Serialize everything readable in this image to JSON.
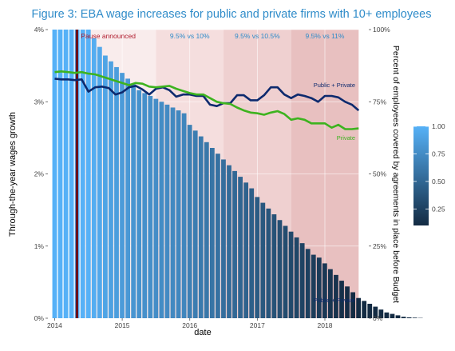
{
  "chart_data": {
    "type": "bar",
    "title": "Figure 3:  EBA wage increases for public and private firms with 10+ employees",
    "xlabel": "date",
    "ylabel": "Through-the-year wages growth",
    "ylabel_right": "Percent of employees covered by agreements in place before Budget",
    "y_left": {
      "min": 0,
      "max": 4,
      "ticks": [
        0,
        1,
        2,
        3,
        4
      ],
      "tick_labels": [
        "0%",
        "1%",
        "2%",
        "3%",
        "4%"
      ]
    },
    "y_right": {
      "min": 0,
      "max": 100,
      "ticks": [
        0,
        25,
        50,
        75,
        100
      ],
      "tick_labels": [
        "0%",
        "25%",
        "50%",
        "75%",
        "100%"
      ]
    },
    "x": {
      "min": 2013.9,
      "max": 2018.65,
      "ticks": [
        2014,
        2015,
        2016,
        2017,
        2018
      ],
      "tick_labels": [
        "2014",
        "2015",
        "2016",
        "2017",
        "2018"
      ]
    },
    "grid": true,
    "shaded_regions": [
      {
        "start": 2014.38,
        "end": 2015.5,
        "color": "#f9ecec"
      },
      {
        "start": 2015.5,
        "end": 2016.5,
        "label": "9.5% vs 10%",
        "color": "#f5dede"
      },
      {
        "start": 2016.5,
        "end": 2017.5,
        "label": "9.5% vs 10.5%",
        "color": "#efd0d0"
      },
      {
        "start": 2017.5,
        "end": 2018.5,
        "label": "9.5% vs 11%",
        "color": "#e8c0c0"
      }
    ],
    "pause_marker": {
      "x": 2014.33,
      "label": "Pause announced",
      "color": "#6b0f1a"
    },
    "bars": {
      "name": "Percent of employees covered",
      "x_start": 2014.0,
      "x_step": 0.0833,
      "values": [
        100,
        100,
        100,
        100,
        100,
        100,
        100,
        97,
        94,
        91,
        89,
        87,
        85,
        83,
        81,
        79,
        78,
        77,
        76,
        75,
        74,
        73,
        72,
        71,
        67,
        65,
        63,
        61,
        59,
        57,
        55,
        53,
        51,
        49,
        47,
        45,
        42,
        40,
        38,
        36,
        34,
        32,
        30,
        28,
        26,
        24,
        22,
        21,
        19,
        17,
        15,
        13,
        11,
        9,
        7,
        6,
        5,
        4,
        3,
        2,
        1.5,
        1,
        0.5,
        0.3,
        0.2,
        0.1
      ],
      "color_scale": {
        "min": 0.1,
        "max": 1.0,
        "low_color": "#132b43",
        "high_color": "#56b1f7",
        "legend_ticks": [
          1.0,
          0.75,
          0.5,
          0.25
        ],
        "legend_labels": [
          "1.00",
          "0.75",
          "0.50",
          "0.25"
        ]
      }
    },
    "series": [
      {
        "name": "Public + Private",
        "color": "#0d2a6e",
        "x": [
          2014.0,
          2014.1,
          2014.2,
          2014.3,
          2014.4,
          2014.5,
          2014.6,
          2014.7,
          2014.8,
          2014.9,
          2015.0,
          2015.1,
          2015.2,
          2015.3,
          2015.4,
          2015.5,
          2015.6,
          2015.7,
          2015.8,
          2015.9,
          2016.0,
          2016.1,
          2016.2,
          2016.3,
          2016.4,
          2016.5,
          2016.6,
          2016.7,
          2016.8,
          2016.9,
          2017.0,
          2017.1,
          2017.2,
          2017.3,
          2017.4,
          2017.5,
          2017.6,
          2017.7,
          2017.8,
          2017.9,
          2018.0,
          2018.1,
          2018.2,
          2018.3,
          2018.4,
          2018.5
        ],
        "y": [
          3.32,
          3.31,
          3.31,
          3.3,
          3.31,
          3.14,
          3.2,
          3.21,
          3.19,
          3.1,
          3.13,
          3.2,
          3.22,
          3.17,
          3.1,
          3.18,
          3.2,
          3.16,
          3.07,
          3.1,
          3.1,
          3.08,
          3.08,
          2.96,
          2.94,
          2.98,
          2.98,
          3.09,
          3.09,
          3.02,
          3.02,
          3.09,
          3.2,
          3.2,
          3.1,
          3.05,
          3.1,
          3.08,
          3.05,
          3.0,
          3.08,
          3.08,
          3.06,
          3.0,
          2.96,
          2.88
        ]
      },
      {
        "name": "Private",
        "color": "#3db31f",
        "x": [
          2014.0,
          2014.1,
          2014.2,
          2014.3,
          2014.4,
          2014.5,
          2014.6,
          2014.7,
          2014.8,
          2014.9,
          2015.0,
          2015.1,
          2015.2,
          2015.3,
          2015.4,
          2015.5,
          2015.6,
          2015.7,
          2015.8,
          2015.9,
          2016.0,
          2016.1,
          2016.2,
          2016.3,
          2016.4,
          2016.5,
          2016.6,
          2016.7,
          2016.8,
          2016.9,
          2017.0,
          2017.1,
          2017.2,
          2017.3,
          2017.4,
          2017.5,
          2017.6,
          2017.7,
          2017.8,
          2017.9,
          2018.0,
          2018.1,
          2018.2,
          2018.3,
          2018.4,
          2018.5
        ],
        "y": [
          3.41,
          3.42,
          3.41,
          3.4,
          3.41,
          3.39,
          3.38,
          3.35,
          3.32,
          3.29,
          3.26,
          3.23,
          3.26,
          3.25,
          3.21,
          3.2,
          3.21,
          3.22,
          3.18,
          3.15,
          3.12,
          3.1,
          3.1,
          3.05,
          3.0,
          2.98,
          2.97,
          2.92,
          2.88,
          2.85,
          2.84,
          2.82,
          2.85,
          2.87,
          2.83,
          2.75,
          2.77,
          2.75,
          2.7,
          2.7,
          2.7,
          2.64,
          2.68,
          2.62,
          2.62,
          2.63
        ]
      }
    ],
    "annotations": [
      {
        "text": "Public + Private",
        "x": 2018.45,
        "y": 3.2,
        "color": "#0d2a6e"
      },
      {
        "text": "Private",
        "x": 2018.45,
        "y": 2.47,
        "color": "#3db31f"
      },
      {
        "text": "Public + Private",
        "x": 2018.45,
        "y": 0.22,
        "color": "#0d2a6e"
      }
    ]
  }
}
